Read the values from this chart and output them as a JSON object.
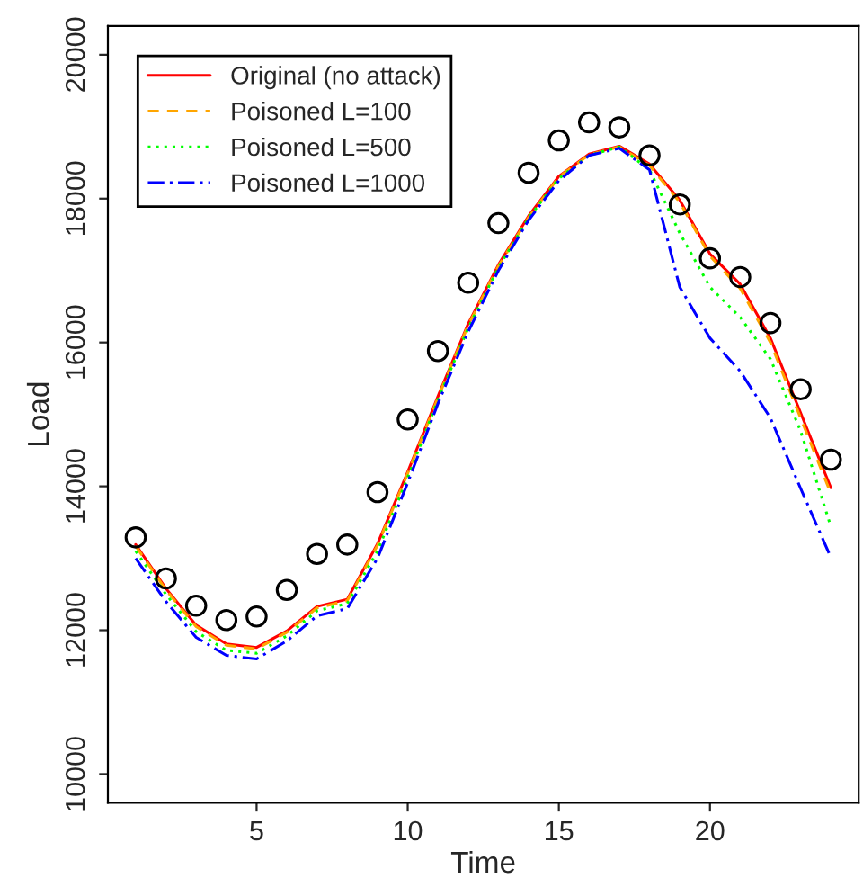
{
  "chart_data": {
    "type": "line",
    "xlabel": "Time",
    "ylabel": "Load",
    "x": [
      1,
      2,
      3,
      4,
      5,
      6,
      7,
      8,
      9,
      10,
      11,
      12,
      13,
      14,
      15,
      16,
      17,
      18,
      19,
      20,
      21,
      22,
      23,
      24
    ],
    "series": [
      {
        "type": "scatter",
        "color": "#000000",
        "marker": "circle",
        "values": [
          13290,
          12720,
          12340,
          12140,
          12190,
          12560,
          13060,
          13190,
          13920,
          14930,
          15880,
          16830,
          17660,
          18360,
          18810,
          19060,
          18990,
          18600,
          17920,
          17170,
          16910,
          16270,
          15350,
          14370
        ]
      },
      {
        "name": "Original (no attack)",
        "color": "#ff0000",
        "line_style": "solid",
        "values": [
          13190,
          12580,
          12070,
          11810,
          11760,
          11990,
          12330,
          12430,
          13200,
          14200,
          15250,
          16260,
          17080,
          17760,
          18310,
          18620,
          18730,
          18480,
          17980,
          17230,
          16810,
          16060,
          15020,
          13980
        ]
      },
      {
        "name": "Poisoned L=100",
        "color": "#ffa500",
        "line_style": "dashed",
        "values": [
          13170,
          12560,
          12050,
          11790,
          11740,
          11970,
          12310,
          12410,
          13180,
          14180,
          15230,
          16240,
          17060,
          17740,
          18300,
          18610,
          18720,
          18460,
          17950,
          17200,
          16750,
          16000,
          14950,
          13900
        ]
      },
      {
        "name": "Poisoned L=500",
        "color": "#00ff00",
        "line_style": "dotted",
        "values": [
          13100,
          12500,
          11980,
          11720,
          11680,
          11920,
          12270,
          12370,
          13100,
          14120,
          15200,
          16200,
          17040,
          17730,
          18280,
          18600,
          18720,
          18400,
          17520,
          16770,
          16350,
          15770,
          14770,
          13440
        ]
      },
      {
        "name": "Poisoned L=1000",
        "color": "#0000ff",
        "line_style": "dashdot",
        "values": [
          13000,
          12400,
          11900,
          11650,
          11600,
          11850,
          12200,
          12300,
          13000,
          14050,
          15150,
          16150,
          17000,
          17700,
          18250,
          18600,
          18700,
          18400,
          16770,
          16060,
          15600,
          14950,
          13970,
          13010
        ]
      }
    ],
    "xlim": [
      0.08,
      24.92
    ],
    "ylim": [
      9600,
      20400
    ],
    "xticks": [
      5,
      10,
      15,
      20
    ],
    "yticks": [
      10000,
      12000,
      14000,
      16000,
      18000,
      20000
    ],
    "legend": "top left",
    "grid": false
  }
}
